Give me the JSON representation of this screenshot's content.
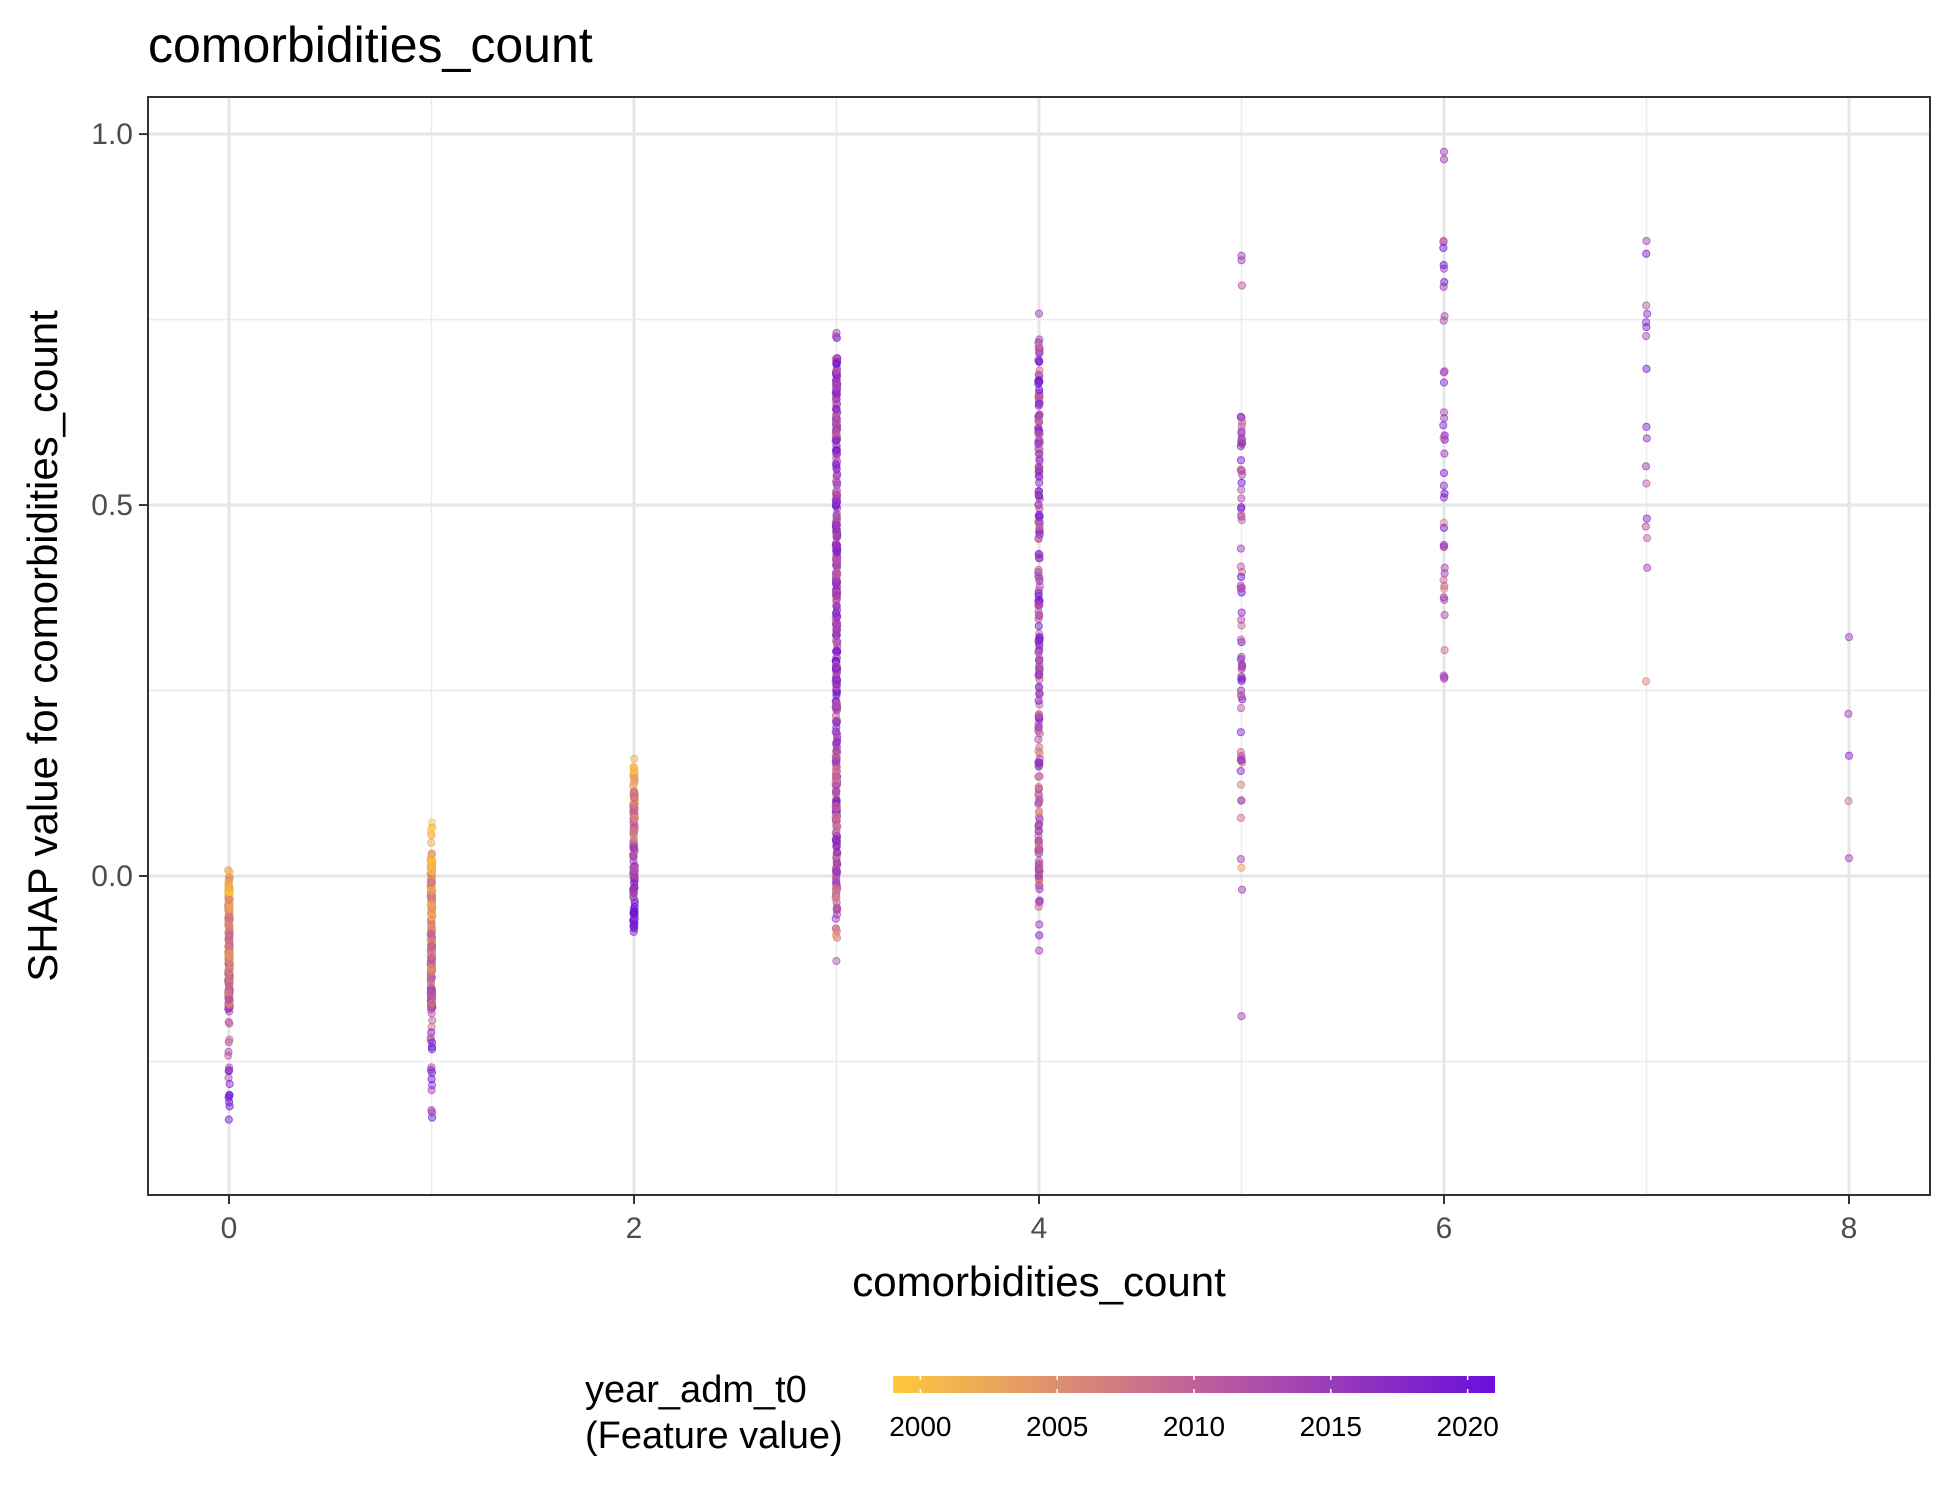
{
  "chart_data": {
    "type": "scatter",
    "title": "comorbidities_count",
    "xlabel": "comorbidities_count",
    "ylabel": "SHAP value for comorbidities_count",
    "xlim": [
      -0.4,
      8.4
    ],
    "ylim": [
      -0.43,
      1.05
    ],
    "x_ticks": [
      "0",
      "2",
      "4",
      "6",
      "8"
    ],
    "y_ticks": [
      "0.0",
      "0.5",
      "1.0"
    ],
    "grid": true,
    "color_feature": {
      "title_line1": "year_adm_t0",
      "title_line2": "(Feature value)",
      "ticks": [
        "2000",
        "2005",
        "2010",
        "2015",
        "2020"
      ],
      "tick_values": [
        2000,
        2005,
        2010,
        2015,
        2020
      ],
      "range": [
        1999,
        2021
      ],
      "low_color": "#FFC83C",
      "mid_color": "#C0609A",
      "high_color": "#6A0FDC"
    },
    "point_summary": [
      {
        "x": 0,
        "y_min": -0.34,
        "y_max": 0.02,
        "dense_min": -0.18,
        "dense_max": 0.0,
        "n": 260
      },
      {
        "x": 1,
        "y_min": -0.36,
        "y_max": 0.08,
        "dense_min": -0.18,
        "dense_max": 0.03,
        "n": 240
      },
      {
        "x": 2,
        "y_min": -0.09,
        "y_max": 0.17,
        "dense_min": -0.07,
        "dense_max": 0.14,
        "n": 140
      },
      {
        "x": 3,
        "y_min": -0.12,
        "y_max": 0.73,
        "dense_min": -0.05,
        "dense_max": 0.7,
        "n": 420
      },
      {
        "x": 4,
        "y_min": -0.11,
        "y_max": 0.76,
        "dense_min": -0.02,
        "dense_max": 0.72,
        "n": 220
      },
      {
        "x": 5,
        "y_min": -0.19,
        "y_max": 0.84,
        "dense_min": 0.1,
        "dense_max": 0.62,
        "n": 70
      },
      {
        "x": 6,
        "y_min": 0.22,
        "y_max": 0.98,
        "dense_min": 0.26,
        "dense_max": 0.86,
        "n": 40
      },
      {
        "x": 7,
        "y_min": 0.25,
        "y_max": 0.86,
        "dense_min": 0.26,
        "dense_max": 0.8,
        "n": 16
      },
      {
        "x": 8,
        "y_min": 0.02,
        "y_max": 0.32,
        "dense_min": 0.02,
        "dense_max": 0.32,
        "n": 3
      }
    ]
  }
}
